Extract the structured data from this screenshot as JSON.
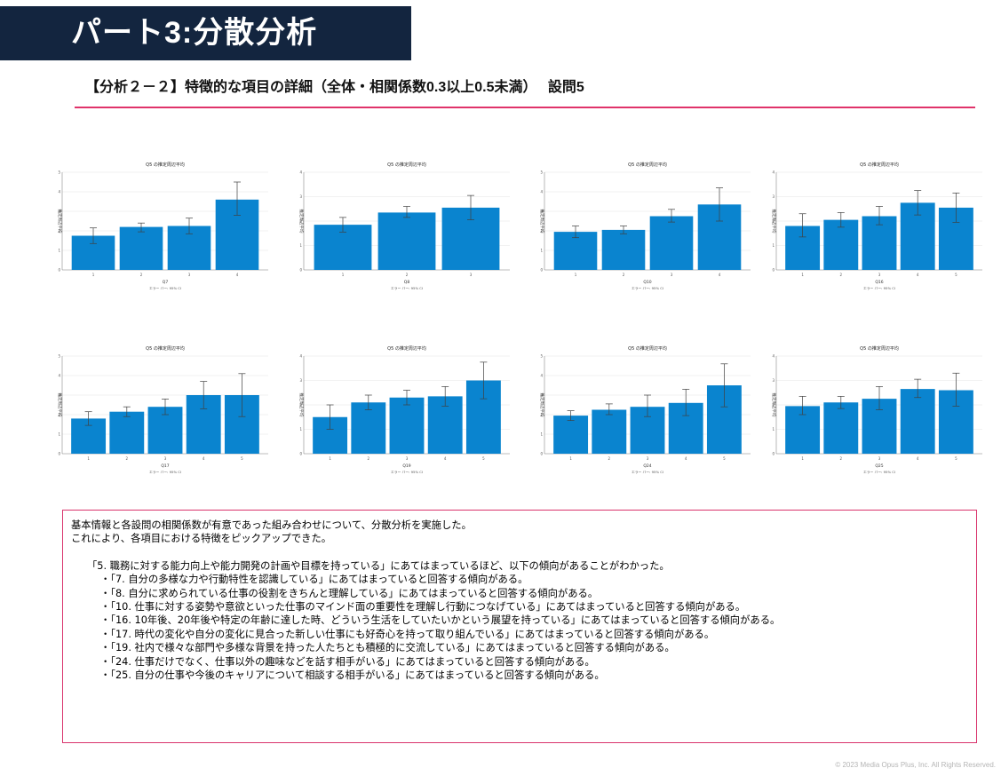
{
  "page": {
    "title": "パート3:分散分析",
    "subtitle": "【分析２－２】特徴的な項目の詳細（全体・相関係数0.3以上0.5未満）　 設問5",
    "copyright": "© 2023 Media Opus Plus, Inc. All Rights Reserved."
  },
  "chart_style": {
    "bar_color": "#0a84cf",
    "error_color": "#404040",
    "grid_color": "#e6e6e6"
  },
  "chart_data": [
    {
      "type": "bar",
      "title": "Q5 の推定周辺平均",
      "xlabel": "Q7",
      "ylabel": "推定周辺平均",
      "footnote": "エラー バー: 95% CI",
      "ylim": [
        0,
        5
      ],
      "yticks": [
        "0",
        "1",
        "2",
        "3",
        "4",
        "5"
      ],
      "categories": [
        "1",
        "2",
        "3",
        "4"
      ],
      "values": [
        1.75,
        2.2,
        2.25,
        3.6
      ],
      "ci_low": [
        1.35,
        1.95,
        1.85,
        2.8
      ],
      "ci_high": [
        2.15,
        2.4,
        2.65,
        4.5
      ]
    },
    {
      "type": "bar",
      "title": "Q5 の推定周辺平均",
      "xlabel": "Q8",
      "ylabel": "推定周辺平均",
      "footnote": "エラー バー: 95% CI",
      "ylim": [
        0,
        4
      ],
      "yticks": [
        "0",
        "1",
        "2",
        "3",
        "4"
      ],
      "categories": [
        "1",
        "2",
        "3"
      ],
      "values": [
        1.85,
        2.35,
        2.55
      ],
      "ci_low": [
        1.55,
        2.15,
        2.05
      ],
      "ci_high": [
        2.15,
        2.6,
        3.05
      ]
    },
    {
      "type": "bar",
      "title": "Q5 の推定周辺平均",
      "xlabel": "Q10",
      "ylabel": "推定周辺平均",
      "footnote": "エラー バー: 95% CI",
      "ylim": [
        0,
        5
      ],
      "yticks": [
        "0",
        "1",
        "2",
        "3",
        "4",
        "5"
      ],
      "categories": [
        "1",
        "2",
        "3",
        "4"
      ],
      "values": [
        1.95,
        2.05,
        2.75,
        3.35
      ],
      "ci_low": [
        1.65,
        1.85,
        2.45,
        2.5
      ],
      "ci_high": [
        2.25,
        2.25,
        3.1,
        4.2
      ]
    },
    {
      "type": "bar",
      "title": "Q5 の推定周辺平均",
      "xlabel": "Q16",
      "ylabel": "推定周辺平均",
      "footnote": "エラー バー: 95% CI",
      "ylim": [
        0,
        4
      ],
      "yticks": [
        "0",
        "1",
        "2",
        "3",
        "4"
      ],
      "categories": [
        "1",
        "2",
        "3",
        "4",
        "5"
      ],
      "values": [
        1.8,
        2.05,
        2.2,
        2.75,
        2.55
      ],
      "ci_low": [
        1.35,
        1.75,
        1.85,
        2.25,
        1.95
      ],
      "ci_high": [
        2.3,
        2.35,
        2.6,
        3.25,
        3.15
      ]
    },
    {
      "type": "bar",
      "title": "Q5 の推定周辺平均",
      "xlabel": "Q17",
      "ylabel": "推定周辺平均",
      "footnote": "エラー バー: 95% CI",
      "ylim": [
        0,
        5
      ],
      "yticks": [
        "0",
        "1",
        "2",
        "3",
        "4",
        "5"
      ],
      "categories": [
        "1",
        "2",
        "3",
        "4",
        "5"
      ],
      "values": [
        1.8,
        2.15,
        2.4,
        3.0,
        3.0
      ],
      "ci_low": [
        1.45,
        1.9,
        2.0,
        2.3,
        1.9
      ],
      "ci_high": [
        2.15,
        2.4,
        2.8,
        3.7,
        4.1
      ]
    },
    {
      "type": "bar",
      "title": "Q5 の推定周辺平均",
      "xlabel": "Q19",
      "ylabel": "推定周辺平均",
      "footnote": "エラー バー: 95% CI",
      "ylim": [
        0,
        4
      ],
      "yticks": [
        "0",
        "1",
        "2",
        "3",
        "4"
      ],
      "categories": [
        "1",
        "2",
        "3",
        "4",
        "5"
      ],
      "values": [
        1.5,
        2.1,
        2.3,
        2.35,
        3.0
      ],
      "ci_low": [
        1.0,
        1.8,
        2.0,
        1.95,
        2.25
      ],
      "ci_high": [
        2.0,
        2.4,
        2.6,
        2.75,
        3.75
      ]
    },
    {
      "type": "bar",
      "title": "Q5 の推定周辺平均",
      "xlabel": "Q24",
      "ylabel": "推定周辺平均",
      "footnote": "エラー バー: 95% CI",
      "ylim": [
        0,
        5
      ],
      "yticks": [
        "0",
        "1",
        "2",
        "3",
        "4",
        "5"
      ],
      "categories": [
        "1",
        "2",
        "3",
        "4",
        "5"
      ],
      "values": [
        1.95,
        2.25,
        2.4,
        2.6,
        3.5
      ],
      "ci_low": [
        1.7,
        2.0,
        1.9,
        1.95,
        2.4
      ],
      "ci_high": [
        2.2,
        2.55,
        3.0,
        3.3,
        4.6
      ]
    },
    {
      "type": "bar",
      "title": "Q5 の推定周辺平均",
      "xlabel": "Q25",
      "ylabel": "推定周辺平均",
      "footnote": "エラー バー: 95% CI",
      "ylim": [
        0,
        4
      ],
      "yticks": [
        "0",
        "1",
        "2",
        "3",
        "4"
      ],
      "categories": [
        "1",
        "2",
        "3",
        "4",
        "5"
      ],
      "values": [
        1.95,
        2.1,
        2.25,
        2.65,
        2.6
      ],
      "ci_low": [
        1.6,
        1.85,
        1.8,
        2.3,
        1.95
      ],
      "ci_high": [
        2.35,
        2.35,
        2.75,
        3.05,
        3.3
      ]
    }
  ],
  "notes": {
    "intro": [
      "基本情報と各設問の相関係数が有意であった組み合わせについて、分散分析を実施した。",
      "これにより、各項目における特徴をピックアップできた。"
    ],
    "lead": "「5. 職務に対する能力向上や能力開発の計画や目標を持っている」にあてはまっているほど、以下の傾向があることがわかった。",
    "items": [
      "・「7. 自分の多様な力や行動特性を認識している」にあてはまっていると回答する傾向がある。",
      "・「8. 自分に求められている仕事の役割をきちんと理解している」にあてはまっていると回答する傾向がある。",
      "・「10. 仕事に対する姿勢や意欲といった仕事のマインド面の重要性を理解し行動につなげている」にあてはまっていると回答する傾向がある。",
      "・「16. 10年後、20年後や特定の年齢に達した時、どういう生活をしていたいかという展望を持っている」にあてはまっていると回答する傾向がある。",
      "・「17. 時代の変化や自分の変化に見合った新しい仕事にも好奇心を持って取り組んでいる」にあてはまっていると回答する傾向がある。",
      "・「19. 社内で様々な部門や多様な背景を持った人たちとも積極的に交流している」にあてはまっていると回答する傾向がある。",
      "・「24. 仕事だけでなく、仕事以外の趣味などを話す相手がいる」にあてはまっていると回答する傾向がある。",
      "・「25. 自分の仕事や今後のキャリアについて相談する相手がいる」にあてはまっていると回答する傾向がある。"
    ]
  }
}
